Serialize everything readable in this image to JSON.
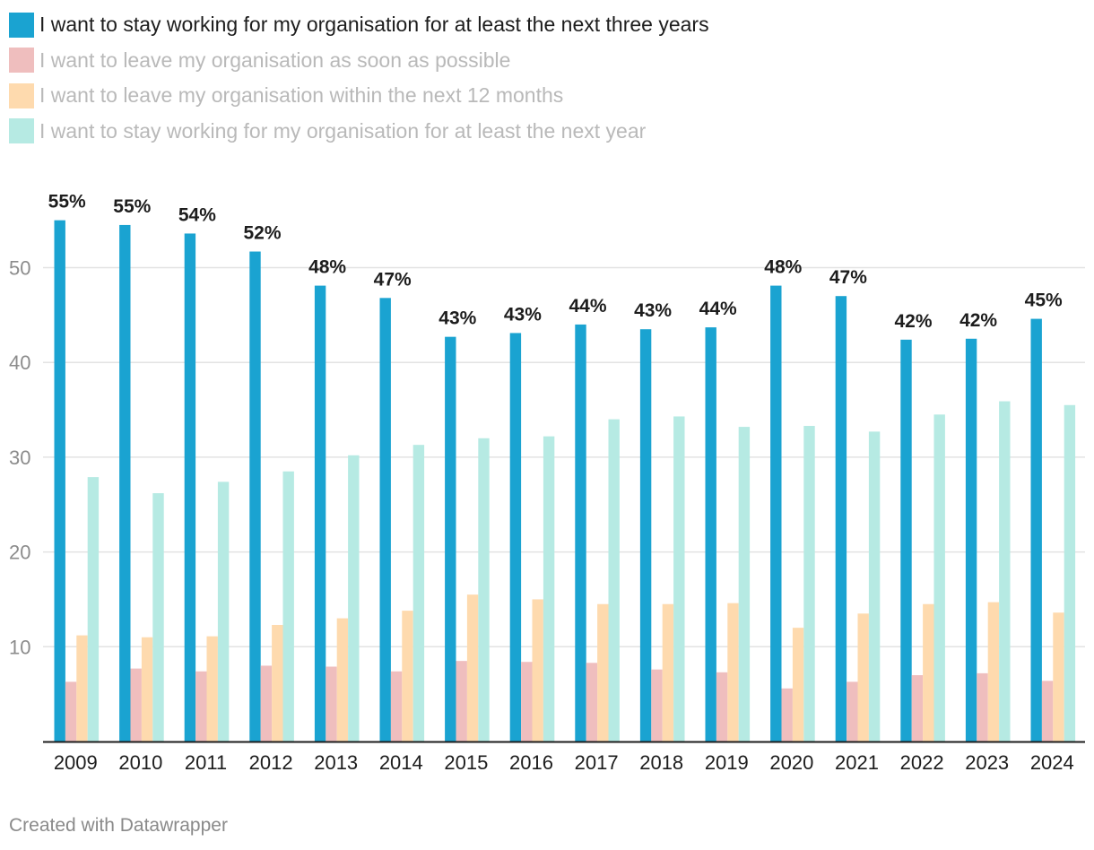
{
  "chart_data": {
    "type": "bar",
    "title": "",
    "xlabel": "",
    "ylabel": "",
    "ylim": [
      0,
      57.8
    ],
    "yticks": [
      10,
      20,
      30,
      40,
      50
    ],
    "categories": [
      "2009",
      "2010",
      "2011",
      "2012",
      "2013",
      "2014",
      "2015",
      "2016",
      "2017",
      "2018",
      "2019",
      "2020",
      "2021",
      "2022",
      "2023",
      "2024"
    ],
    "series": [
      {
        "name": "I want to stay working for my organisation for at least the next three years",
        "color": "#1aa3d1",
        "highlighted": true,
        "values": [
          55,
          54.5,
          53.6,
          51.7,
          48.1,
          46.8,
          42.7,
          43.1,
          44,
          43.5,
          43.7,
          48.1,
          47,
          42.4,
          42.5,
          44.6
        ],
        "labels": [
          "55%",
          "55%",
          "54%",
          "52%",
          "48%",
          "47%",
          "43%",
          "43%",
          "44%",
          "43%",
          "44%",
          "48%",
          "47%",
          "42%",
          "42%",
          "45%"
        ]
      },
      {
        "name": "I want to leave my organisation as soon as possible",
        "color": "#efbebe",
        "highlighted": false,
        "values": [
          6.3,
          7.7,
          7.4,
          8,
          7.9,
          7.4,
          8.5,
          8.4,
          8.3,
          7.6,
          7.3,
          5.6,
          6.3,
          7,
          7.2,
          6.4
        ]
      },
      {
        "name": "I want to leave my organisation within the next 12 months",
        "color": "#fedaae",
        "highlighted": false,
        "values": [
          11.2,
          11,
          11.1,
          12.3,
          13,
          13.8,
          15.5,
          15,
          14.5,
          14.5,
          14.6,
          12,
          13.5,
          14.5,
          14.7,
          13.6
        ]
      },
      {
        "name": "I want to stay working for my organisation for at least the next year",
        "color": "#b6eae3",
        "highlighted": false,
        "values": [
          27.9,
          26.2,
          27.4,
          28.5,
          30.2,
          31.3,
          32,
          32.2,
          34,
          34.3,
          33.2,
          33.3,
          32.7,
          34.5,
          35.9,
          35.5
        ]
      }
    ]
  },
  "footer": {
    "credit": "Created with Datawrapper"
  }
}
